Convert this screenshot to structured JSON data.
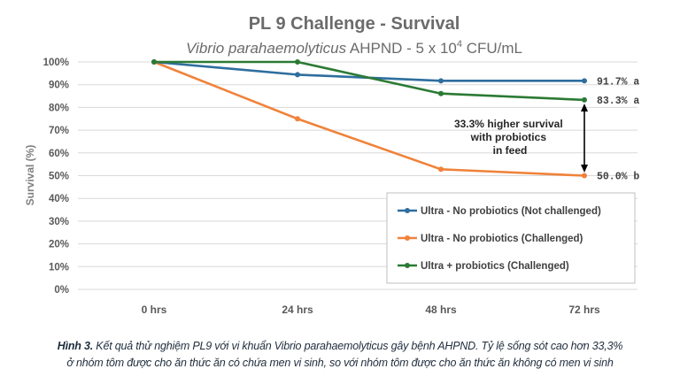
{
  "chart_data": {
    "type": "line",
    "title": "PL 9 Challenge - Survival",
    "subtitle_italic": "Vibrio parahaemolyticus",
    "subtitle_rest": " AHPND - 5 x 10",
    "subtitle_exp": "4",
    "subtitle_unit": " CFU/mL",
    "ylabel": "Survival (%)",
    "xlabel": "",
    "categories": [
      "0 hrs",
      "24 hrs",
      "48 hrs",
      "72 hrs"
    ],
    "yticks": [
      "0%",
      "10%",
      "20%",
      "30%",
      "40%",
      "50%",
      "60%",
      "70%",
      "80%",
      "90%",
      "100%"
    ],
    "ylim": [
      0,
      100
    ],
    "grid": true,
    "legend_position": "lower-right",
    "series": [
      {
        "name": "Ultra - No probiotics (Not challenged)",
        "color": "#2e6e9e",
        "values": [
          100,
          94.4,
          91.7,
          91.7
        ],
        "end_label": "91.7%  a"
      },
      {
        "name": "Ultra - No probiotics (Challenged)",
        "color": "#f0823a",
        "values": [
          100,
          75,
          52.8,
          50.0
        ],
        "end_label": "50.0%  b"
      },
      {
        "name": "Ultra + probiotics (Challenged)",
        "color": "#2b7a34",
        "values": [
          100,
          100,
          86.1,
          83.3
        ],
        "end_label": "83.3%  a"
      }
    ],
    "annotation": [
      "33.3% higher survival",
      "with probiotics",
      "in feed"
    ]
  },
  "caption": {
    "label": "Hình 3.",
    "line1": " Kết quả thử nghiệm PL9 với vi khuẩn Vibrio parahaemolyticus gây bệnh AHPND. Tỷ lệ sống sót cao hơn 33,3%",
    "line2": "ở nhóm tôm được cho ăn thức ăn có chứa men vi sinh, so với nhóm tôm được cho ăn thức ăn không có men vi sinh"
  }
}
